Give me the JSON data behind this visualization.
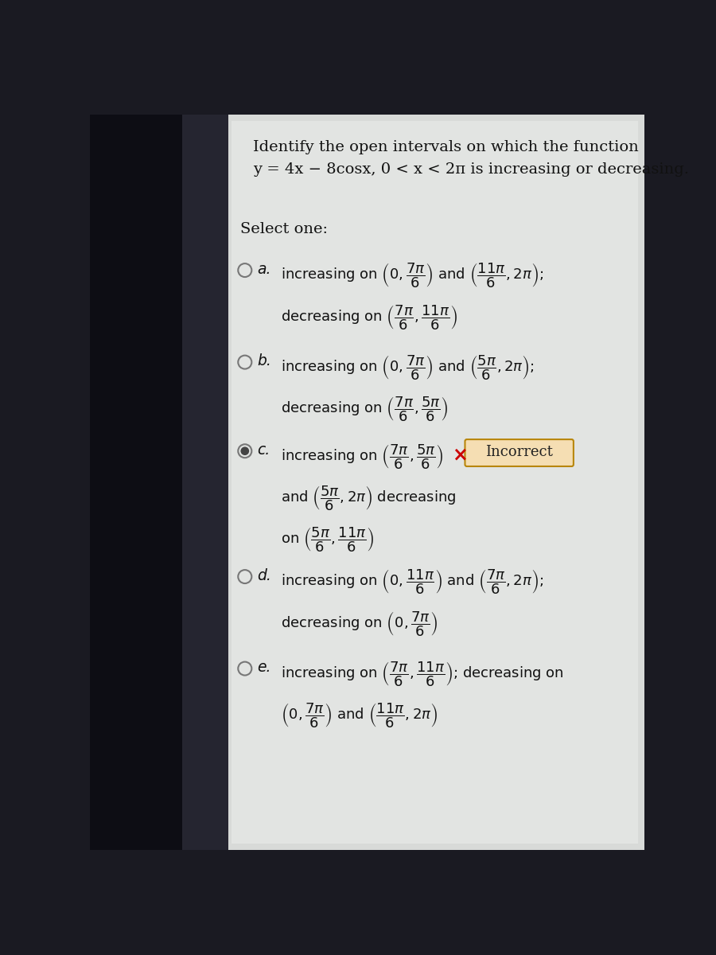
{
  "title_line1": "Identify the open intervals on which the function",
  "title_line2": "y = 4x − 8cosx, 0 < x < 2π is increasing or decreasing.",
  "select_one": "Select one:",
  "left_panel_color": "#2a2a35",
  "right_panel_color": "#e0e2e0",
  "content_bg": "#e8e8e6"
}
